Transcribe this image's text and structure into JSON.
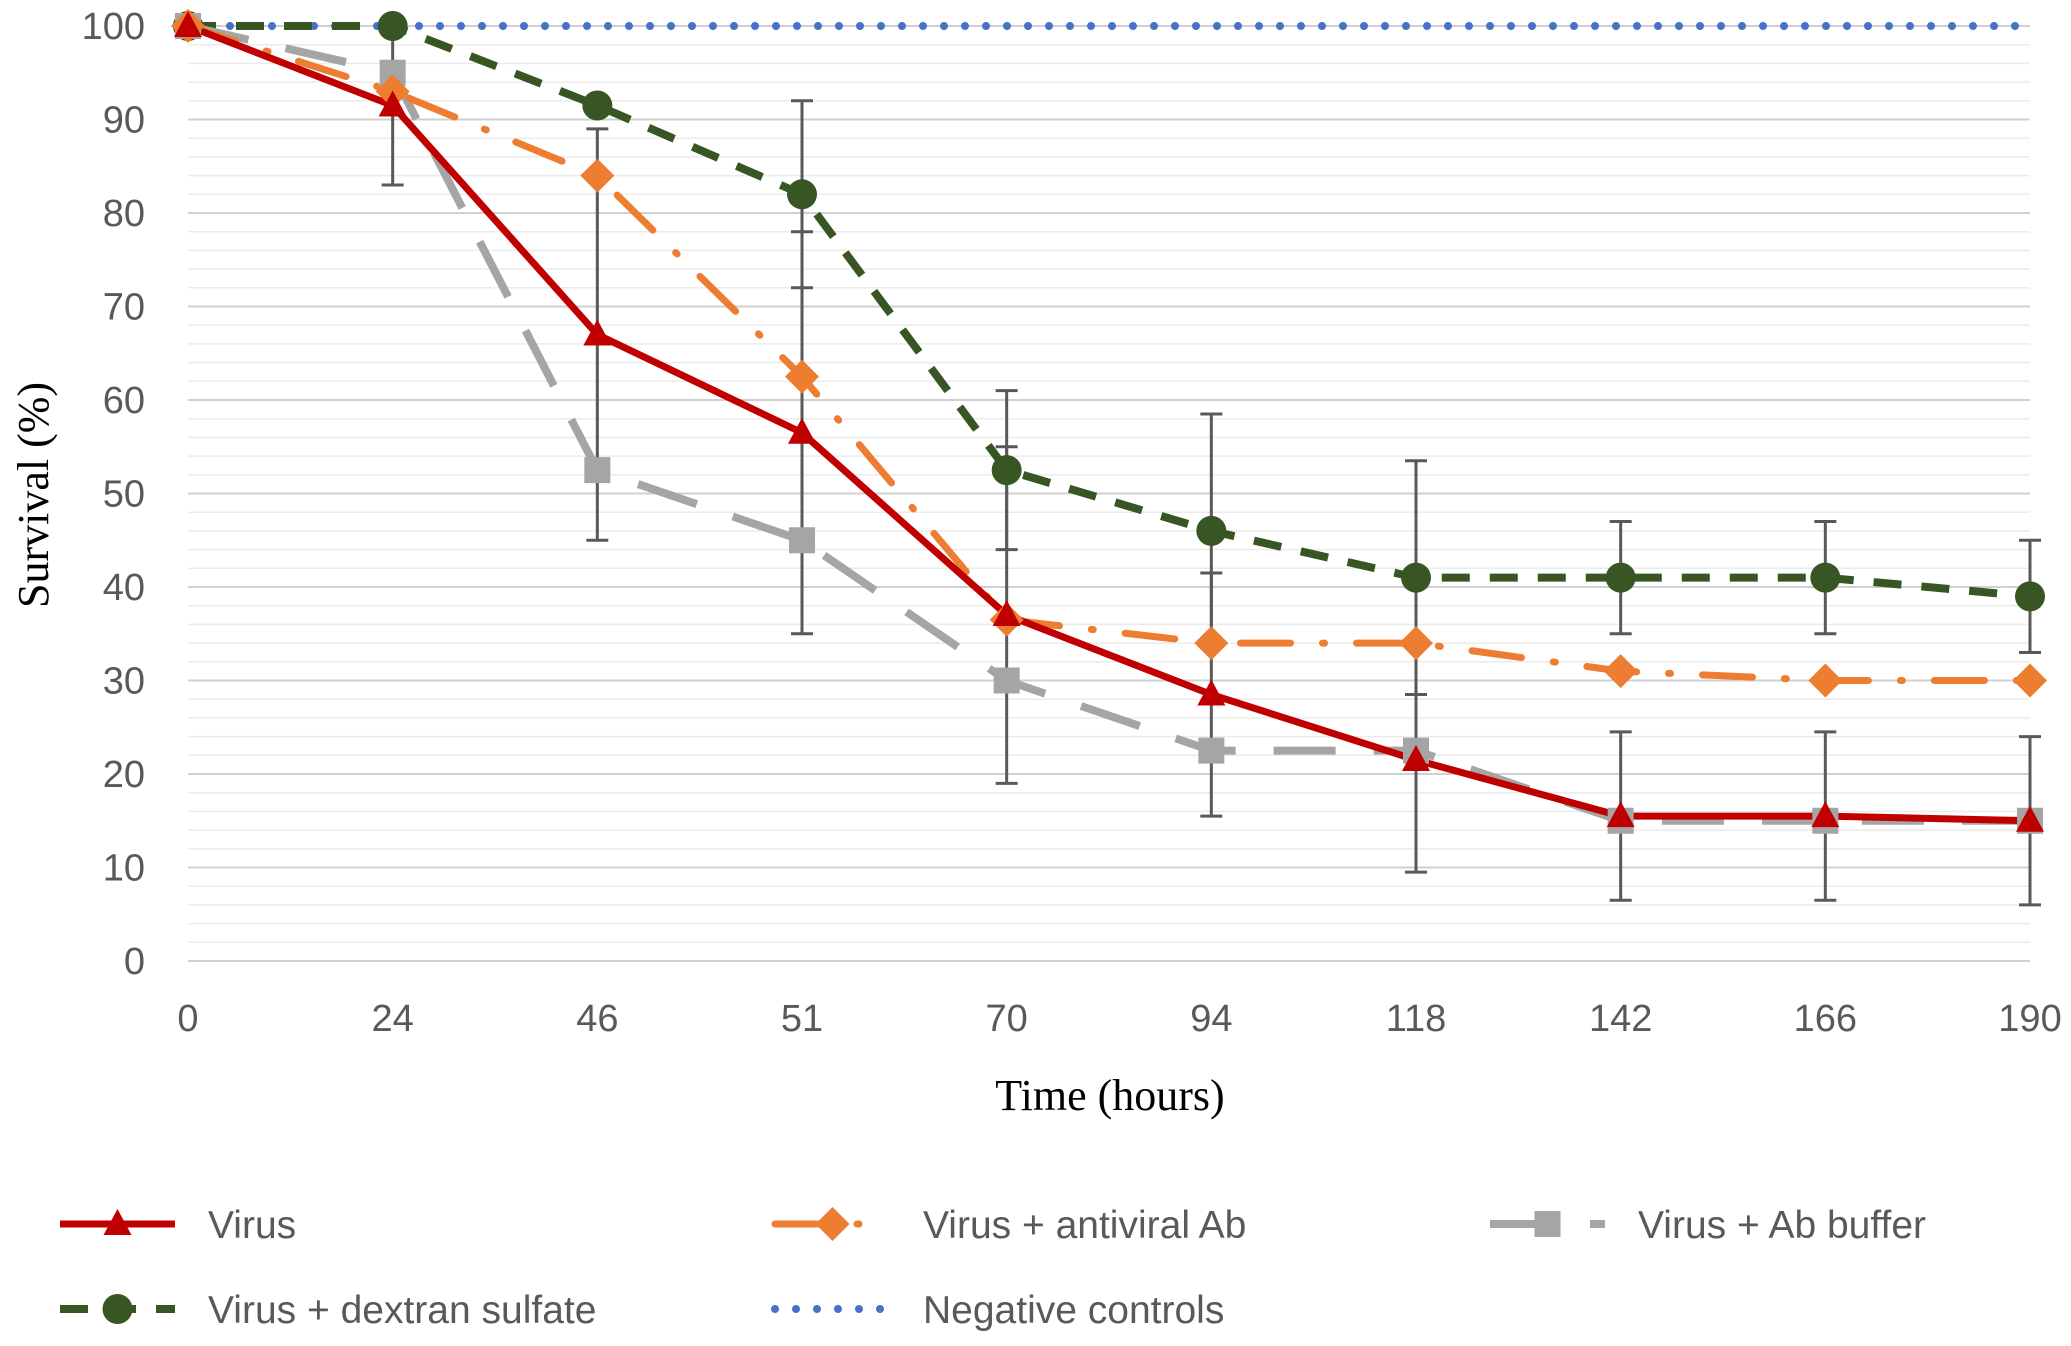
{
  "chart_data": {
    "type": "line",
    "title": "",
    "xlabel": "Time (hours)",
    "ylabel": "Survival (%)",
    "x": [
      "0",
      "24",
      "46",
      "51",
      "70",
      "94",
      "118",
      "142",
      "166",
      "190"
    ],
    "ylim": [
      0,
      100
    ],
    "yticks": [
      "0",
      "10",
      "20",
      "30",
      "40",
      "50",
      "60",
      "70",
      "80",
      "90",
      "100"
    ],
    "grid": true,
    "legend_position": "bottom",
    "series": [
      {
        "name": "Virus",
        "values": [
          100,
          91.5,
          67,
          56.5,
          37,
          28.5,
          21.5,
          15.5,
          15.5,
          15
        ],
        "color": "#c00000",
        "marker": "triangle",
        "dash": "solid",
        "error": [
          0,
          8.5,
          22,
          21.5,
          18,
          13,
          12,
          9,
          9,
          9
        ]
      },
      {
        "name": "Virus + antiviral Ab",
        "values": [
          100,
          93,
          84,
          62.5,
          36.5,
          34,
          34,
          31,
          30,
          30
        ],
        "color": "#ed7d31",
        "marker": "diamond",
        "dash": "long-dash-dot",
        "error": [
          0,
          0,
          0,
          0,
          0,
          0,
          0,
          0,
          0,
          0
        ]
      },
      {
        "name": "Virus + Ab buffer",
        "values": [
          100,
          95,
          52.5,
          45,
          30,
          22.5,
          22.5,
          15,
          15,
          15
        ],
        "color": "#a5a5a5",
        "marker": "square",
        "dash": "long-dash",
        "error": [
          0,
          0,
          0,
          0,
          0,
          0,
          0,
          0,
          0,
          0
        ]
      },
      {
        "name": "Virus + dextran sulfate",
        "values": [
          100,
          100,
          91.5,
          82,
          52.5,
          46,
          41,
          41,
          41,
          39
        ],
        "color": "#375623",
        "marker": "circle",
        "dash": "dash",
        "error": [
          0,
          0,
          0,
          10,
          8.5,
          12.5,
          12.5,
          6,
          6,
          6
        ]
      },
      {
        "name": "Negative controls",
        "values": [
          100,
          100,
          100,
          100,
          100,
          100,
          100,
          100,
          100,
          100
        ],
        "color": "#4472c4",
        "marker": "none",
        "dash": "dot",
        "error": [
          0,
          0,
          0,
          0,
          0,
          0,
          0,
          0,
          0,
          0
        ]
      }
    ]
  }
}
